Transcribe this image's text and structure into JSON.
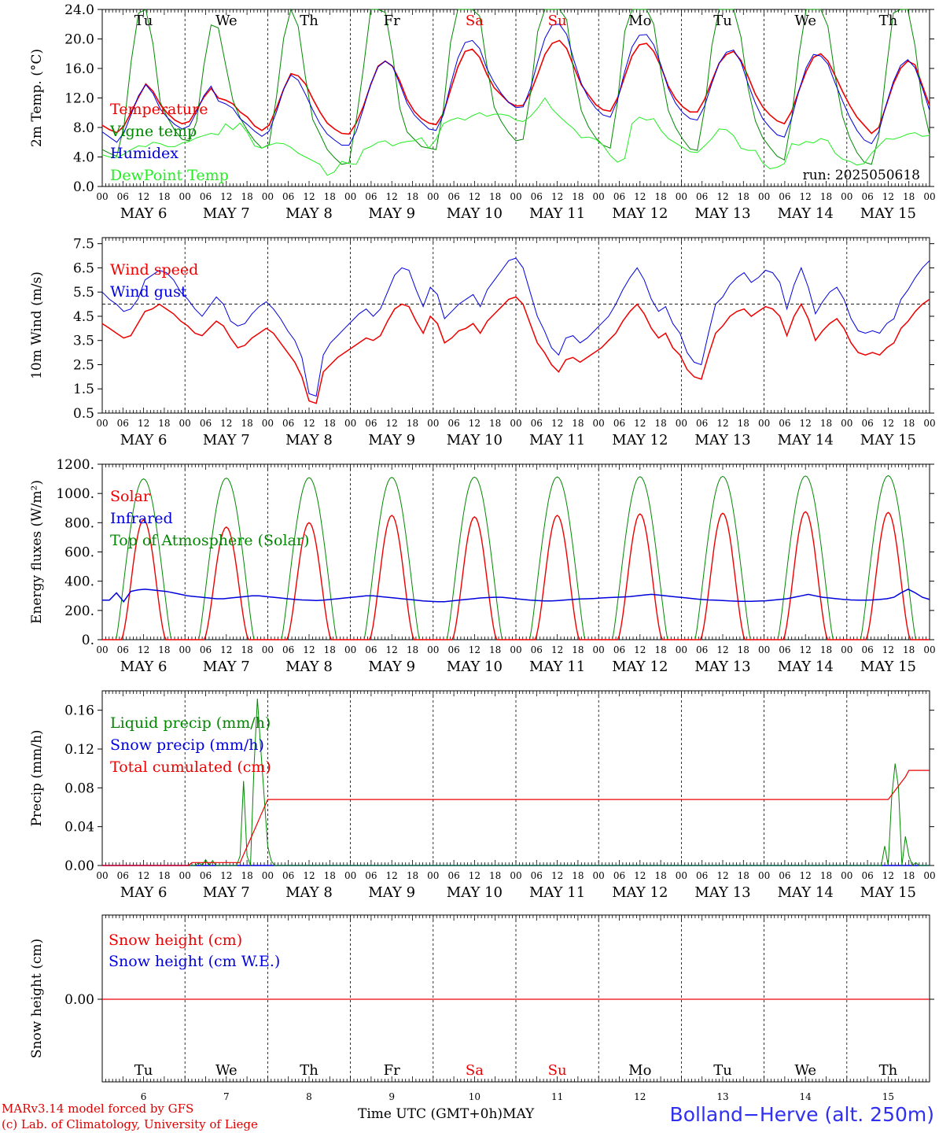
{
  "chart_data": [
    {
      "type": "line",
      "ylabel": "2m Temp. (°C)",
      "ylim": [
        0,
        24
      ],
      "yticks": [
        "0.0",
        "4.0",
        "8.0",
        "12.0",
        "16.0",
        "20.0",
        "24.0"
      ],
      "annotation": "run: 2025050618",
      "series": [
        {
          "name": "Temperature",
          "color": "#ee0000",
          "values": [
            8.3,
            7.7,
            7.3,
            8.2,
            10.1,
            12.1,
            13.9,
            12.9,
            11.1,
            9.9,
            9.0,
            8.5,
            8.8,
            10.4,
            12.1,
            13.3,
            12.0,
            11.7,
            11.2,
            10.1,
            9.4,
            8.2,
            7.6,
            8.3,
            10.6,
            13.2,
            15.3,
            15.0,
            13.9,
            11.9,
            10.1,
            8.6,
            7.8,
            7.2,
            7.1,
            8.6,
            10.9,
            13.8,
            16.3,
            17.0,
            16.3,
            14.3,
            11.8,
            10.2,
            9.2,
            8.6,
            8.4,
            9.9,
            13.1,
            16.2,
            18.3,
            18.6,
            17.5,
            15.2,
            13.4,
            12.4,
            11.4,
            10.9,
            11.0,
            12.7,
            15.2,
            17.9,
            19.4,
            19.8,
            18.7,
            16.2,
            13.8,
            12.4,
            11.1,
            10.4,
            10.2,
            12.0,
            14.9,
            17.7,
            19.2,
            19.4,
            18.3,
            16.2,
            13.6,
            11.9,
            10.8,
            10.1,
            10.1,
            11.8,
            14.3,
            16.7,
            17.9,
            18.3,
            17.1,
            14.9,
            12.5,
            10.8,
            9.7,
            8.9,
            8.5,
            10.2,
            13.0,
            15.6,
            17.5,
            18.0,
            17.0,
            15.0,
            12.9,
            11.0,
            9.4,
            8.3,
            7.2,
            8.0,
            10.9,
            13.9,
            16.0,
            17.0,
            16.5,
            13.7,
            11.0
          ]
        },
        {
          "name": "Vigne temp",
          "color": "#008800",
          "values": [
            5.0,
            4.5,
            4.1,
            8.2,
            17.0,
            23.5,
            24.0,
            19.3,
            11.4,
            9.3,
            7.6,
            6.4,
            6.2,
            8.8,
            16.4,
            21.9,
            21.5,
            16.5,
            11.7,
            9.3,
            7.6,
            6.2,
            5.2,
            5.7,
            12.1,
            20.1,
            24.0,
            21.7,
            14.8,
            9.1,
            7.1,
            5.0,
            3.9,
            3.0,
            3.2,
            9.0,
            16.1,
            24.0,
            24.0,
            23.6,
            17.9,
            10.6,
            7.4,
            6.4,
            5.4,
            5.2,
            5.0,
            10.4,
            19.5,
            24.0,
            24.0,
            24.0,
            23.1,
            16.4,
            10.8,
            8.8,
            7.3,
            6.2,
            6.4,
            12.6,
            21.0,
            24.0,
            24.0,
            24.0,
            22.6,
            15.4,
            10.3,
            8.1,
            6.6,
            5.6,
            5.2,
            11.4,
            21.0,
            24.0,
            24.0,
            24.0,
            22.0,
            15.4,
            10.3,
            8.0,
            6.4,
            5.1,
            4.9,
            10.5,
            19.1,
            24.0,
            24.0,
            24.0,
            20.3,
            13.3,
            8.9,
            6.6,
            5.3,
            4.1,
            3.6,
            9.3,
            17.8,
            24.0,
            24.0,
            24.0,
            21.7,
            14.9,
            9.5,
            6.6,
            4.6,
            3.3,
            3.0,
            6.8,
            15.5,
            23.5,
            24.0,
            24.0,
            19.1,
            11.3,
            7.0
          ]
        },
        {
          "name": "Humidex",
          "color": "#0000dd",
          "values": [
            7.4,
            6.7,
            6.0,
            7.3,
            9.8,
            12.3,
            13.8,
            12.6,
            10.5,
            9.3,
            8.4,
            7.8,
            8.2,
            10.1,
            12.3,
            13.6,
            11.6,
            11.2,
            10.6,
            9.2,
            8.4,
            7.5,
            6.8,
            7.5,
            10.1,
            13.2,
            15.1,
            14.4,
            12.5,
            10.4,
            8.5,
            7.1,
            6.3,
            5.6,
            5.6,
            7.5,
            10.6,
            13.9,
            16.2,
            17.0,
            16.3,
            13.9,
            11.3,
            9.7,
            8.7,
            7.8,
            7.6,
            9.7,
            13.8,
            17.4,
            19.5,
            19.8,
            18.7,
            16.0,
            14.1,
            12.6,
            11.4,
            10.7,
            10.8,
            13.3,
            16.9,
            20.1,
            21.9,
            22.0,
            20.6,
            17.1,
            14.0,
            12.0,
            10.6,
            9.7,
            9.4,
            11.7,
            15.6,
            18.9,
            20.5,
            20.6,
            19.2,
            16.4,
            13.3,
            11.3,
            10.0,
            9.2,
            9.0,
            10.9,
            14.0,
            16.7,
            18.2,
            18.5,
            16.9,
            13.9,
            11.3,
            9.2,
            8.0,
            7.0,
            6.7,
            9.3,
            13.0,
            16.1,
            17.9,
            17.7,
            16.6,
            14.0,
            11.6,
            9.4,
            7.6,
            6.3,
            5.8,
            7.4,
            11.0,
            14.2,
            16.4,
            17.2,
            16.1,
            13.4,
            10.3
          ]
        },
        {
          "name": "DewPoint Temp",
          "color": "#22ee22",
          "values": [
            4.3,
            4.0,
            3.9,
            4.4,
            5.0,
            5.5,
            5.4,
            6.0,
            5.8,
            5.4,
            5.4,
            5.9,
            6.1,
            6.6,
            6.9,
            7.2,
            7.0,
            8.5,
            7.7,
            8.6,
            7.3,
            5.5,
            5.2,
            5.6,
            5.9,
            5.8,
            5.3,
            4.5,
            4.0,
            3.5,
            3.0,
            1.5,
            2.0,
            3.4,
            3.1,
            3.0,
            5.0,
            5.4,
            6.0,
            6.2,
            5.5,
            5.9,
            6.1,
            6.2,
            6.6,
            5.2,
            6.4,
            8.5,
            9.0,
            9.3,
            9.0,
            9.6,
            10.0,
            9.5,
            9.8,
            9.8,
            9.6,
            9.0,
            8.8,
            9.5,
            10.6,
            12.0,
            10.5,
            9.5,
            8.6,
            7.8,
            6.6,
            6.7,
            6.4,
            5.6,
            4.2,
            3.3,
            3.8,
            8.5,
            9.4,
            9.0,
            9.2,
            7.6,
            6.5,
            5.9,
            5.3,
            4.7,
            4.6,
            5.5,
            6.5,
            7.8,
            7.7,
            6.9,
            5.2,
            4.9,
            4.9,
            3.2,
            2.4,
            2.6,
            3.1,
            5.8,
            5.6,
            6.1,
            5.9,
            6.5,
            6.2,
            4.5,
            3.7,
            3.4,
            2.9,
            3.1,
            4.5,
            5.5,
            6.5,
            6.4,
            6.7,
            7.1,
            7.3,
            6.8,
            6.9
          ]
        }
      ]
    },
    {
      "type": "line",
      "ylabel": "10m Wind (m/s)",
      "ylim": [
        0.5,
        7.75
      ],
      "yticks": [
        "0.5",
        "1.5",
        "2.5",
        "3.5",
        "4.5",
        "5.5",
        "6.5",
        "7.5"
      ],
      "reference_line": 5.0,
      "series": [
        {
          "name": "Wind speed",
          "color": "#ee0000",
          "values": [
            4.2,
            4.0,
            3.8,
            3.6,
            3.7,
            4.2,
            4.7,
            4.8,
            5.0,
            4.8,
            4.6,
            4.3,
            4.1,
            3.8,
            3.7,
            4.0,
            4.3,
            4.1,
            3.6,
            3.2,
            3.3,
            3.6,
            3.8,
            4.0,
            3.8,
            3.4,
            3.0,
            2.6,
            2.0,
            1.0,
            0.9,
            2.2,
            2.5,
            2.8,
            3.0,
            3.2,
            3.4,
            3.6,
            3.5,
            3.7,
            4.3,
            4.8,
            5.0,
            4.9,
            4.3,
            3.8,
            4.5,
            4.2,
            3.4,
            3.6,
            3.9,
            4.0,
            4.2,
            3.8,
            4.3,
            4.6,
            4.9,
            5.2,
            5.3,
            5.0,
            4.2,
            3.4,
            3.0,
            2.5,
            2.2,
            2.7,
            2.8,
            2.6,
            2.8,
            3.0,
            3.2,
            3.5,
            3.8,
            4.3,
            4.7,
            5.0,
            4.6,
            4.0,
            3.6,
            3.8,
            3.2,
            2.9,
            2.3,
            2.0,
            1.9,
            2.9,
            3.8,
            4.1,
            4.5,
            4.7,
            4.8,
            4.5,
            4.7,
            4.9,
            4.8,
            4.5,
            3.7,
            4.5,
            5.0,
            4.4,
            3.5,
            3.9,
            4.2,
            4.4,
            4.0,
            3.4,
            3.0,
            2.9,
            3.0,
            2.9,
            3.2,
            3.4,
            4.0,
            4.3,
            4.7,
            5.0,
            5.2
          ]
        },
        {
          "name": "Wind gust",
          "color": "#0000dd",
          "values": [
            5.5,
            5.2,
            5.0,
            4.7,
            4.8,
            5.2,
            6.0,
            6.2,
            6.4,
            6.3,
            6.0,
            5.5,
            5.2,
            4.8,
            4.5,
            4.9,
            5.3,
            5.0,
            4.3,
            4.1,
            4.2,
            4.6,
            4.9,
            5.1,
            4.8,
            4.4,
            3.9,
            3.5,
            2.8,
            1.3,
            1.2,
            2.9,
            3.4,
            3.7,
            4.0,
            4.3,
            4.6,
            4.8,
            4.5,
            4.8,
            5.5,
            6.2,
            6.5,
            6.4,
            5.6,
            4.9,
            5.7,
            5.4,
            4.4,
            4.7,
            5.0,
            5.2,
            5.4,
            4.9,
            5.6,
            6.0,
            6.4,
            6.8,
            6.9,
            6.5,
            5.5,
            4.5,
            3.9,
            3.2,
            2.9,
            3.6,
            3.7,
            3.4,
            3.6,
            3.9,
            4.2,
            4.5,
            5.0,
            5.6,
            6.1,
            6.5,
            6.0,
            5.2,
            4.7,
            4.9,
            4.2,
            3.8,
            3.0,
            2.6,
            2.5,
            3.8,
            5.0,
            5.3,
            5.8,
            6.1,
            6.3,
            5.9,
            6.1,
            6.4,
            6.3,
            5.9,
            4.8,
            5.8,
            6.5,
            5.7,
            4.6,
            5.1,
            5.5,
            5.7,
            5.2,
            4.4,
            3.9,
            3.8,
            3.9,
            3.8,
            4.2,
            4.4,
            5.2,
            5.6,
            6.1,
            6.5,
            6.8
          ]
        }
      ]
    },
    {
      "type": "line",
      "ylabel": "Energy fluxes (W/m²)",
      "ylim": [
        0,
        1200
      ],
      "yticks": [
        "0.",
        "200.",
        "400.",
        "600.",
        "800.",
        "1000.",
        "1200."
      ],
      "series": [
        {
          "name": "Solar",
          "color": "#ee0000",
          "peaks": [
            820,
            770,
            800,
            850,
            840,
            850,
            860,
            865,
            875,
            870
          ]
        },
        {
          "name": "Infrared",
          "color": "#0000dd",
          "values": [
            270,
            270,
            320,
            260,
            330,
            340,
            345,
            340,
            335,
            330,
            320,
            310,
            300,
            295,
            290,
            285,
            280,
            280,
            285,
            290,
            295,
            300,
            300,
            295,
            290,
            285,
            280,
            275,
            272,
            270,
            268,
            270,
            275,
            280,
            285,
            290,
            295,
            300,
            300,
            295,
            290,
            285,
            280,
            275,
            270,
            265,
            262,
            260,
            260,
            265,
            270,
            275,
            280,
            285,
            288,
            290,
            290,
            285,
            280,
            275,
            270,
            268,
            265,
            265,
            268,
            272,
            275,
            278,
            280,
            282,
            285,
            288,
            290,
            292,
            295,
            300,
            305,
            310,
            305,
            300,
            295,
            290,
            285,
            280,
            275,
            272,
            270,
            268,
            265,
            263,
            262,
            262,
            264,
            266,
            270,
            275,
            280,
            290,
            300,
            310,
            300,
            290,
            285,
            280,
            275,
            272,
            270,
            270,
            272,
            275,
            280,
            290,
            320,
            345,
            320,
            290,
            275
          ]
        },
        {
          "name": "Top of Atmosphere (Solar)",
          "color": "#008800",
          "peaks": [
            1100,
            1105,
            1108,
            1110,
            1112,
            1113,
            1115,
            1117,
            1120,
            1122
          ]
        }
      ]
    },
    {
      "type": "line",
      "ylabel": "Precip (mm/h)",
      "ylim": [
        0,
        0.18
      ],
      "yticks": [
        "0.00",
        "0.04",
        "0.08",
        "0.12",
        "0.16"
      ],
      "series": [
        {
          "name": "Liquid precip (mm/h)",
          "color": "#008800"
        },
        {
          "name": "Snow precip (mm/h)",
          "color": "#0000dd"
        },
        {
          "name": "Total cumulated (cm)",
          "color": "#ee0000"
        }
      ]
    },
    {
      "type": "line",
      "ylabel": "Snow height (cm)",
      "yticks": [
        "0.00"
      ],
      "series": [
        {
          "name": "Snow height (cm)",
          "color": "#ee0000"
        },
        {
          "name": "Snow height (cm W.E.)",
          "color": "#0000dd"
        }
      ]
    }
  ],
  "x_axis": {
    "hour_labels": [
      "00",
      "06",
      "12",
      "18"
    ],
    "last_label": "00",
    "dates": [
      "MAY  6",
      "MAY  7",
      "MAY  8",
      "MAY  9",
      "MAY 10",
      "MAY 11",
      "MAY 12",
      "MAY 13",
      "MAY 14",
      "MAY 15"
    ],
    "day_numbers": [
      "6",
      "7",
      "8",
      "9",
      "10",
      "11",
      "12",
      "13",
      "14",
      "15"
    ],
    "weekdays": [
      "Tu",
      "We",
      "Th",
      "Fr",
      "Sa",
      "Su",
      "Mo",
      "Tu",
      "We",
      "Th"
    ],
    "weekend_color": "#ee0000"
  },
  "footer": {
    "model": "MARv3.14 model forced by GFS",
    "copyright": "(c) Lab. of Climatology, University of Liege",
    "time_label": "Time UTC (GMT+0h)",
    "month": "MAY",
    "station": "Bolland−Herve (alt. 250m)"
  }
}
